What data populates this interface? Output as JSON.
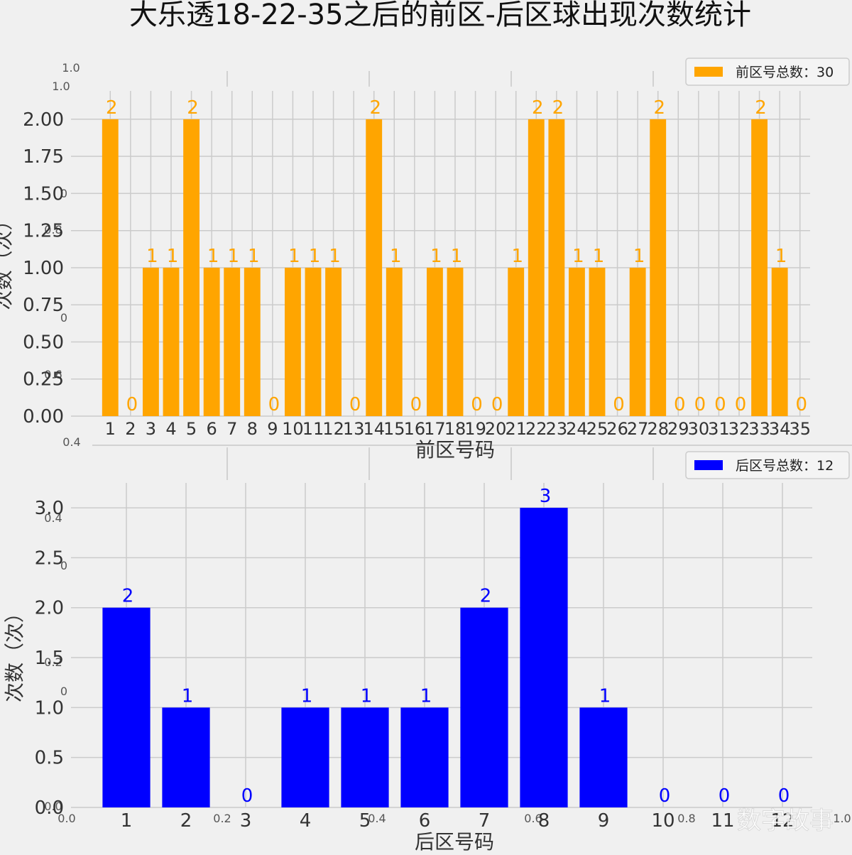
{
  "title": "大乐透18-22-35之后的前区-后区球出现次数统计",
  "watermark": "数字故事",
  "ghost_axis": {
    "y_labels": [
      "1.0",
      "1.0",
      "0",
      "0.8",
      "0",
      "0.6",
      "0.4",
      "0.4",
      "0",
      "0.2",
      "0",
      "0.0"
    ],
    "x_labels": [
      "0.0",
      "0.2",
      "0.4",
      "0.6",
      "0.8",
      "1.0"
    ]
  },
  "chart_data": [
    {
      "type": "bar",
      "categories": [
        "1",
        "2",
        "3",
        "4",
        "5",
        "6",
        "7",
        "8",
        "9",
        "10",
        "11",
        "12",
        "13",
        "14",
        "15",
        "16",
        "17",
        "18",
        "19",
        "20",
        "21",
        "22",
        "23",
        "24",
        "25",
        "26",
        "27",
        "28",
        "29",
        "30",
        "31",
        "32",
        "33",
        "34",
        "35"
      ],
      "values": [
        2,
        0,
        1,
        1,
        2,
        1,
        1,
        1,
        0,
        1,
        1,
        1,
        0,
        2,
        1,
        0,
        1,
        1,
        0,
        0,
        1,
        2,
        2,
        1,
        1,
        0,
        1,
        2,
        0,
        0,
        0,
        0,
        2,
        1,
        0
      ],
      "xlabel": "前区号码",
      "ylabel": "次数（次）",
      "ylim": [
        0,
        2.1
      ],
      "yticks": [
        "0.00",
        "0.25",
        "0.50",
        "0.75",
        "1.00",
        "1.25",
        "1.50",
        "1.75",
        "2.00"
      ],
      "legend": "前区号总数：30",
      "legend_position": "top-right",
      "color": "#FFA500",
      "grid": true
    },
    {
      "type": "bar",
      "categories": [
        "1",
        "2",
        "3",
        "4",
        "5",
        "6",
        "7",
        "8",
        "9",
        "10",
        "11",
        "12"
      ],
      "values": [
        2,
        1,
        0,
        1,
        1,
        1,
        2,
        3,
        1,
        0,
        0,
        0
      ],
      "xlabel": "后区号码",
      "ylabel": "次数（次）",
      "ylim": [
        0,
        3.1
      ],
      "yticks": [
        "0.0",
        "0.5",
        "1.0",
        "1.5",
        "2.0",
        "2.5",
        "3.0"
      ],
      "legend": "后区号总数：12",
      "legend_position": "top-right",
      "color": "#0000FF",
      "grid": true
    }
  ]
}
